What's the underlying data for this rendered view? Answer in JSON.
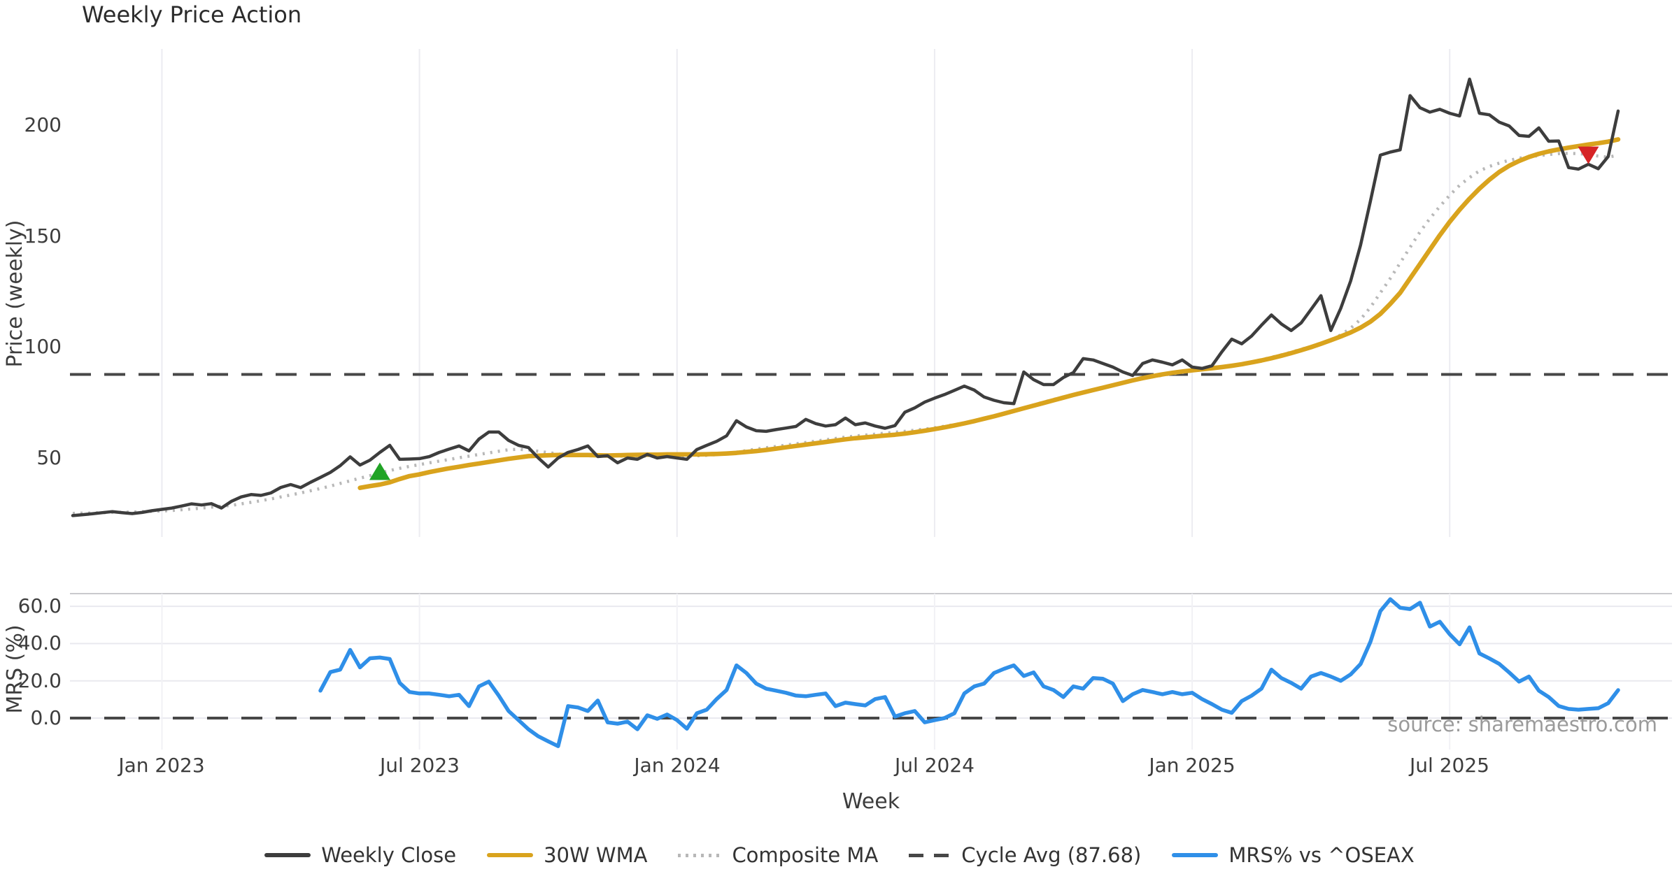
{
  "header": {
    "title": "Weekly Price Action"
  },
  "price_panel": {
    "ylabel": "Price (weekly)",
    "yticks": [
      {
        "label": "200"
      },
      {
        "label": "150"
      },
      {
        "label": "100"
      },
      {
        "label": "50"
      }
    ]
  },
  "mrs_panel": {
    "ylabel": "MRS (%)",
    "yticks": [
      {
        "label": "60.0"
      },
      {
        "label": "40.0"
      },
      {
        "label": "20.0"
      },
      {
        "label": "0.0"
      }
    ],
    "source_note": "source: sharemaestro.com"
  },
  "x_axis": {
    "label": "Week",
    "ticks": [
      {
        "label": "Jan 2023"
      },
      {
        "label": "Jul 2023"
      },
      {
        "label": "Jan 2024"
      },
      {
        "label": "Jul 2024"
      },
      {
        "label": "Jan 2025"
      },
      {
        "label": "Jul 2025"
      }
    ]
  },
  "legend": {
    "items": [
      {
        "label": "Weekly Close"
      },
      {
        "label": "30W WMA"
      },
      {
        "label": "Composite MA"
      },
      {
        "label": "Cycle Avg (87.68)"
      },
      {
        "label": "MRS% vs ^OSEAX"
      }
    ]
  },
  "chart_data": [
    {
      "type": "line",
      "title": "Weekly Price Action",
      "ylabel": "Price (weekly)",
      "ylim": [
        14,
        234
      ],
      "yticks": [
        50,
        100,
        150,
        200
      ],
      "grid": "vertical-only",
      "x_total_weeks": 156,
      "x_tick_weeks": [
        9,
        35,
        61,
        87,
        113,
        139
      ],
      "x_tick_labels": [
        "Jan 2023",
        "Jul 2023",
        "Jan 2024",
        "Jul 2024",
        "Jan 2025",
        "Jul 2025"
      ],
      "cycle_avg_line": {
        "value": 87.68,
        "style": "dashed",
        "color": "#474747"
      },
      "series": [
        {
          "name": "Weekly Close",
          "style": "solid",
          "color": "#3d3d3d",
          "start_week": 0,
          "values": [
            24,
            24.4,
            24.8,
            25.3,
            25.8,
            25.3,
            24.9,
            25.4,
            26.2,
            26.8,
            27.4,
            28.3,
            29.3,
            28.8,
            29.4,
            27.4,
            30.4,
            32.4,
            33.5,
            33.1,
            34.2,
            36.7,
            38,
            36.6,
            39,
            41.2,
            43.5,
            46.5,
            50.5,
            46.8,
            49,
            52.5,
            55.7,
            49.4,
            49.5,
            49.7,
            50.6,
            52.5,
            54,
            55.4,
            53.2,
            58.5,
            61.7,
            61.7,
            57.9,
            55.7,
            54.7,
            50,
            45.9,
            50,
            52.5,
            53.8,
            55.4,
            50.6,
            51,
            47.8,
            50,
            49.4,
            51.6,
            50,
            50.6,
            50,
            49.4,
            53.8,
            55.7,
            57.5,
            60,
            66.8,
            64,
            62.3,
            62,
            62.8,
            63.5,
            64.2,
            67.4,
            65.5,
            64.4,
            65,
            68,
            65,
            65.8,
            64.4,
            63.4,
            64.6,
            70.6,
            72.6,
            75.2,
            77,
            78.6,
            80.5,
            82.4,
            80.6,
            77.5,
            76,
            74.9,
            74.5,
            88.8,
            85.3,
            83.1,
            83.1,
            86.3,
            88.5,
            94.8,
            94.2,
            92.6,
            91,
            88.8,
            87.2,
            92.6,
            94.2,
            93.2,
            92,
            94.2,
            91,
            90.4,
            91.6,
            97.9,
            103.6,
            101.5,
            105,
            109.9,
            114.5,
            110.5,
            107.5,
            110.9,
            117,
            123.2,
            107.5,
            117.5,
            129.8,
            146,
            166,
            186.6,
            188,
            189,
            213.5,
            208,
            206,
            207.3,
            205.5,
            204.3,
            220.9,
            205.5,
            204.8,
            201.5,
            199.8,
            195.5,
            195.1,
            198.9,
            192.9,
            193,
            181,
            180.3,
            182.5,
            180.5,
            186,
            206.5
          ]
        },
        {
          "name": "30W WMA",
          "style": "solid",
          "color": "#d9a31d",
          "start_week": 29,
          "values": [
            36.5,
            37.3,
            38,
            39,
            40.5,
            41.8,
            42.6,
            43.6,
            44.5,
            45.3,
            46,
            46.8,
            47.5,
            48.2,
            48.9,
            49.6,
            50.2,
            50.8,
            51,
            51.2,
            51.3,
            51.3,
            51.3,
            51.3,
            51.2,
            51.1,
            51.2,
            51.3,
            51.4,
            51.5,
            51.5,
            51.6,
            51.6,
            51.6,
            51.6,
            51.7,
            51.8,
            52,
            52.3,
            52.7,
            53.1,
            53.6,
            54.2,
            54.8,
            55.4,
            56,
            56.6,
            57.2,
            57.8,
            58.4,
            58.9,
            59.3,
            59.7,
            60.1,
            60.5,
            61,
            61.6,
            62.3,
            63,
            63.8,
            64.7,
            65.6,
            66.6,
            67.7,
            68.8,
            70,
            71.2,
            72.4,
            73.6,
            74.8,
            76,
            77.2,
            78.4,
            79.5,
            80.6,
            81.7,
            82.8,
            83.9,
            85,
            86,
            86.9,
            87.7,
            88.4,
            89,
            89.5,
            90,
            90.5,
            91,
            91.6,
            92.3,
            93.1,
            94,
            95,
            96.1,
            97.3,
            98.6,
            100,
            101.5,
            103.1,
            104.8,
            106.6,
            108.8,
            111.5,
            115,
            119.5,
            124.5,
            131,
            137.5,
            144,
            150.5,
            156.5,
            162,
            167,
            171.5,
            175.5,
            179,
            181.8,
            184,
            185.8,
            187.2,
            188.3,
            189.2,
            190,
            190.7,
            191.4,
            192,
            192.7,
            193.7
          ]
        },
        {
          "name": "Composite MA",
          "style": "dotted",
          "color": "#b8b8b8",
          "start_week": 0,
          "values": [
            25,
            25.1,
            25.2,
            25.3,
            25.4,
            25.5,
            25.6,
            25.75,
            25.9,
            26.1,
            26.3,
            26.65,
            27,
            27.4,
            27.8,
            28.2,
            28.6,
            29.3,
            30,
            30.7,
            31.5,
            32.4,
            33.3,
            34.2,
            35.2,
            36.2,
            37.3,
            38.5,
            39.7,
            40.9,
            42,
            43.2,
            44.3,
            45.3,
            46.2,
            47,
            47.8,
            48.6,
            49.3,
            50.1,
            50.8,
            51.6,
            52.3,
            53,
            53.7,
            53.9,
            53.6,
            53,
            52.4,
            51.8,
            51.4,
            51.1,
            51,
            50.9,
            50.9,
            50.8,
            50.8,
            50.8,
            50.8,
            50.85,
            50.9,
            50.9,
            50.9,
            51,
            51.2,
            51.5,
            52,
            52.6,
            53.3,
            54,
            54.6,
            55.2,
            55.8,
            56.4,
            57,
            57.6,
            58.2,
            58.8,
            59.4,
            59.9,
            60.3,
            60.75,
            61.2,
            61.6,
            62,
            62.5,
            63,
            63.6,
            64.3,
            65,
            65.8,
            66.8,
            67.8,
            68.9,
            70,
            71.2,
            72.5,
            73.9,
            75.2,
            76.4,
            77.5,
            78.7,
            79.8,
            80.9,
            82,
            83,
            84,
            84.9,
            85.8,
            86.6,
            87.3,
            88,
            88.6,
            89.2,
            89.8,
            90.4,
            91,
            91.7,
            92.5,
            93.4,
            94.3,
            95.4,
            96.5,
            97.7,
            99,
            100.3,
            101.8,
            103.3,
            105.5,
            108.5,
            112.5,
            118,
            124.5,
            131,
            138,
            145,
            152,
            158,
            163.5,
            168.5,
            173,
            176.5,
            179.5,
            181.5,
            183,
            184.3,
            185.2,
            185.9,
            186.4,
            186.9,
            187.3,
            187.4,
            187.3,
            186.9,
            186.2,
            185.7,
            186.6
          ]
        }
      ],
      "markers": [
        {
          "shape": "triangle-up",
          "color": "#21a326",
          "week": 31,
          "value": 43.5
        },
        {
          "shape": "triangle-down",
          "color": "#d62426",
          "week": 153,
          "value": 187
        }
      ]
    },
    {
      "type": "line",
      "ylabel": "MRS (%)",
      "ylim": [
        -17,
        67
      ],
      "yticks": [
        0,
        20,
        40,
        60
      ],
      "grid": "both",
      "zero_line": {
        "value": 0,
        "style": "dashed",
        "color": "#474747"
      },
      "series": [
        {
          "name": "MRS% vs ^OSEAX",
          "style": "solid",
          "color": "#2f8fe8",
          "start_week": 25,
          "values": [
            14.7,
            24.7,
            26,
            36.6,
            27.2,
            32.1,
            32.5,
            31.7,
            18.9,
            14,
            13.2,
            13.2,
            12.5,
            11.7,
            12.5,
            6.4,
            17,
            19.6,
            12.1,
            3.8,
            -1.1,
            -6,
            -9.8,
            -12.5,
            -15.1,
            6.4,
            5.7,
            3.8,
            9.4,
            -2.3,
            -3,
            -1.9,
            -6,
            1.5,
            -0.4,
            1.9,
            -1.1,
            -5.7,
            2.6,
            4.5,
            10.2,
            15.1,
            28.3,
            24.2,
            18.5,
            15.8,
            14.7,
            13.6,
            12.1,
            11.7,
            12.5,
            13.2,
            6.4,
            8.3,
            7.5,
            6.8,
            10.2,
            11.3,
            0.8,
            2.6,
            3.8,
            -2.3,
            -1.1,
            0,
            2.6,
            13.2,
            17,
            18.5,
            24.2,
            26.4,
            28.3,
            22.6,
            24.5,
            17,
            15.1,
            11.3,
            17,
            15.8,
            21.5,
            21.1,
            18.5,
            9.1,
            12.8,
            15.1,
            14,
            12.8,
            14,
            12.8,
            13.6,
            10.2,
            7.5,
            4.5,
            2.8,
            9.1,
            12,
            15.8,
            26,
            21.5,
            18.9,
            15.8,
            22.3,
            24.2,
            22.3,
            20,
            23.4,
            29,
            41,
            57.4,
            63.8,
            59.2,
            58.5,
            61.9,
            49.1,
            51.7,
            45,
            39.6,
            48.7,
            34.7,
            32,
            29.1,
            24.5,
            19.6,
            22.3,
            14.7,
            11.3,
            6.5,
            4.9,
            4.5,
            4.9,
            5.3,
            8,
            15
          ]
        }
      ]
    }
  ]
}
